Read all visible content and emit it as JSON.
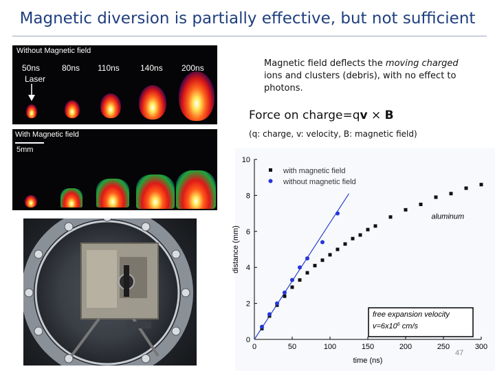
{
  "title": "Magnetic diversion is partially effective, but not sufficient",
  "top_panel": {
    "label": "Without Magnetic field",
    "times": [
      "50ns",
      "80ns",
      "110ns",
      "140ns",
      "200ns"
    ],
    "laser_label": "Laser"
  },
  "bottom_panel": {
    "label": "With Magnetic field",
    "scale_label": "5mm"
  },
  "description": {
    "part1": "Magnetic field deflects the ",
    "moving": "moving",
    "part2": " ",
    "charged": "charged",
    "part3": " ions and clusters (debris), with no effect to photons."
  },
  "force": {
    "text": "Force on charge=q",
    "v": "v",
    "cross": " × ",
    "b": "B",
    "note": "(q: charge, v: velocity, B: magnetic field)"
  },
  "page_number": "47",
  "chart_data": {
    "type": "scatter",
    "xlabel": "time (ns)",
    "ylabel": "distance (mm)",
    "xlim": [
      0,
      300
    ],
    "ylim": [
      0,
      10
    ],
    "xticks": [
      0,
      50,
      100,
      150,
      200,
      250,
      300
    ],
    "yticks": [
      0,
      2,
      4,
      6,
      8,
      10
    ],
    "legend_position": "top-left",
    "series": [
      {
        "name": "with magnetic field",
        "color": "#111111",
        "marker": "square",
        "x": [
          10,
          20,
          30,
          40,
          50,
          60,
          70,
          80,
          90,
          100,
          110,
          120,
          130,
          140,
          150,
          160,
          180,
          200,
          220,
          240,
          260,
          280,
          300
        ],
        "y": [
          0.6,
          1.3,
          1.9,
          2.4,
          2.9,
          3.3,
          3.7,
          4.1,
          4.4,
          4.7,
          5.0,
          5.3,
          5.6,
          5.8,
          6.1,
          6.3,
          6.8,
          7.2,
          7.5,
          7.9,
          8.1,
          8.4,
          8.6
        ]
      },
      {
        "name": "without magnetic field",
        "color": "#2436d8",
        "marker": "circle",
        "x": [
          10,
          20,
          30,
          40,
          50,
          60,
          70,
          90,
          110
        ],
        "y": [
          0.7,
          1.4,
          2.0,
          2.6,
          3.3,
          4.0,
          4.5,
          5.4,
          7.0
        ]
      }
    ],
    "fit_line": {
      "x": [
        0,
        125
      ],
      "y": [
        0,
        8.1
      ],
      "color": "#2a3fd0"
    },
    "annotations": [
      {
        "text": "aluminum",
        "x": 245,
        "y": 6.7
      },
      {
        "line1": "free expansion velocity",
        "line2": "v=6x10",
        "sup": "6",
        "unit": " cm/s"
      }
    ]
  }
}
